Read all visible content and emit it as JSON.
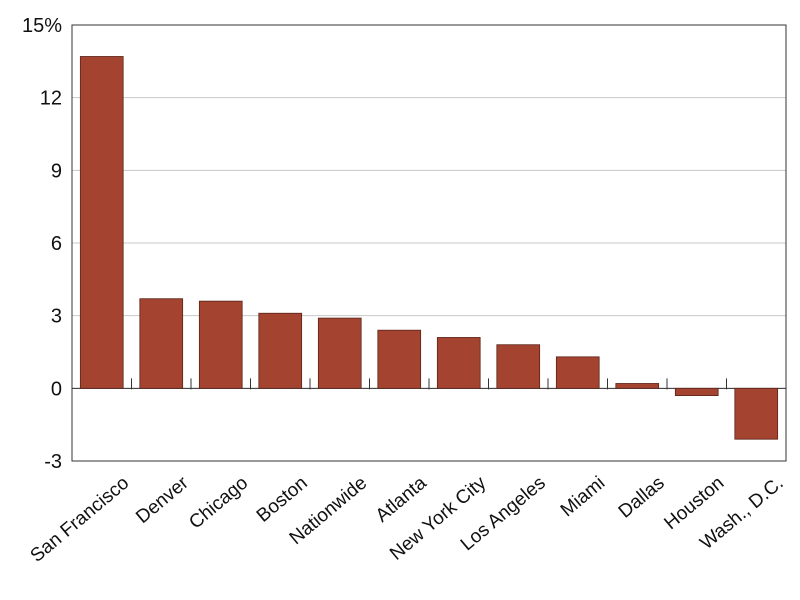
{
  "chart_data": {
    "type": "bar",
    "categories": [
      "San Francisco",
      "Denver",
      "Chicago",
      "Boston",
      "Nationwide",
      "Atlanta",
      "New York City",
      "Los Angeles",
      "Miami",
      "Dallas",
      "Houston",
      "Wash., D.C."
    ],
    "values": [
      13.7,
      3.7,
      3.6,
      3.1,
      2.9,
      2.4,
      2.1,
      1.8,
      1.3,
      0.2,
      -0.3,
      -2.1
    ],
    "highlight_category": "Nationwide",
    "y_tick_labels": [
      "-3",
      "0",
      "3",
      "6",
      "9",
      "12",
      "15%"
    ],
    "y_ticks": [
      -3,
      0,
      3,
      6,
      9,
      12,
      15
    ],
    "ylim": [
      -3,
      15
    ],
    "grid": true,
    "title": "",
    "xlabel": "",
    "ylabel": ""
  },
  "colors": {
    "bar": "#a34330",
    "bar_stroke": "#5a2418",
    "highlight_label": "#a34330",
    "grid": "#c8c8c8",
    "axis": "#333333"
  }
}
